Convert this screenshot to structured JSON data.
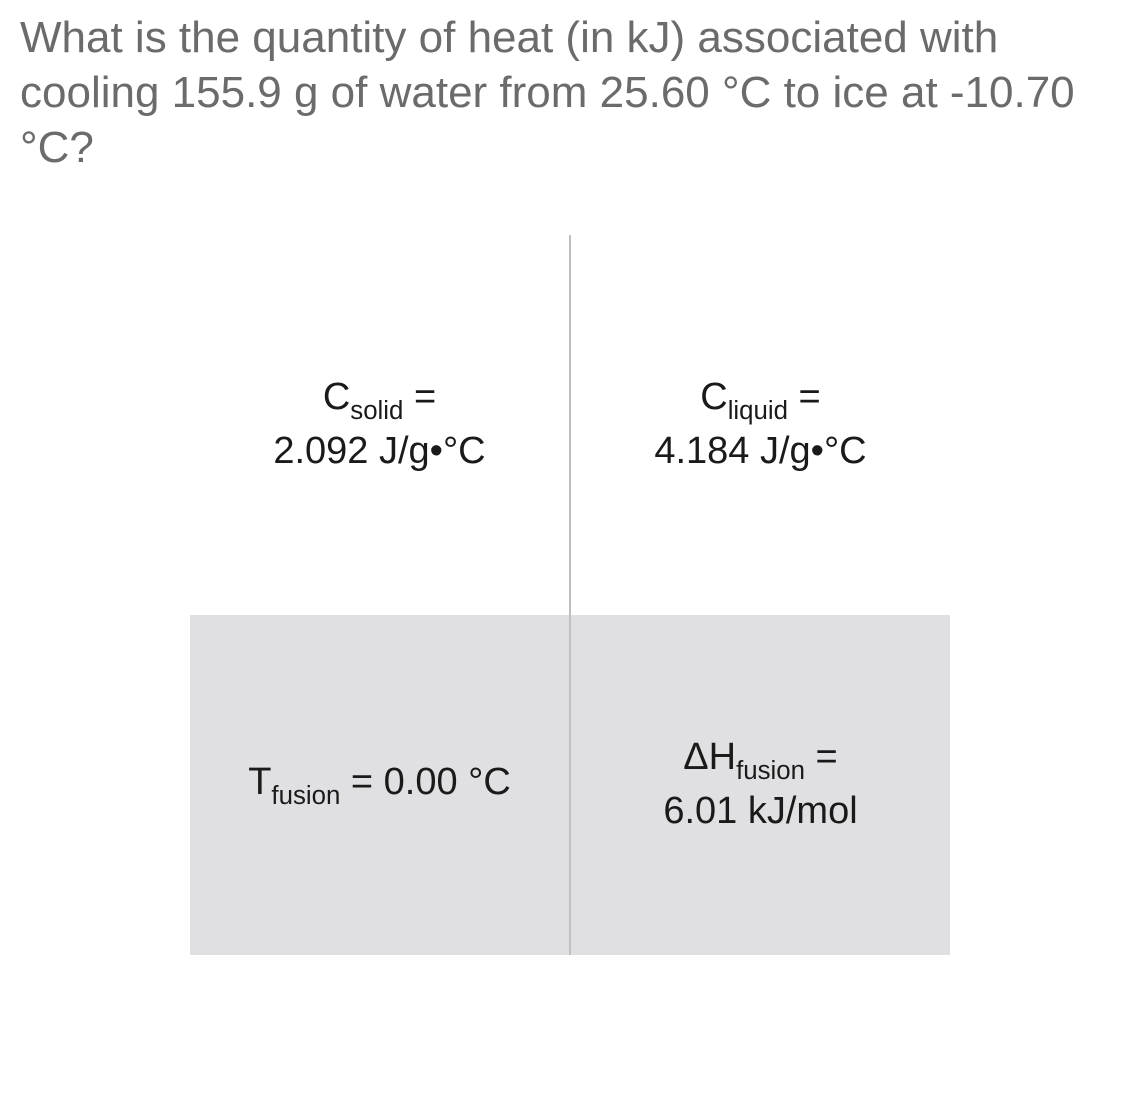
{
  "question": "What is the quantity of heat (in kJ) associated with cooling 155.9 g of water from 25.60 °C to ice at -10.70 °C?",
  "table": {
    "rows": [
      {
        "background": "#ffffff",
        "cells": [
          {
            "symbol_prefix": "C",
            "symbol_sub": "solid",
            "symbol_suffix": " =",
            "value": "2.092 J/g•°C"
          },
          {
            "symbol_prefix": "C",
            "symbol_sub": "liquid",
            "symbol_suffix": " =",
            "value": "4.184 J/g•°C"
          }
        ]
      },
      {
        "background": "#e0e0e3",
        "cells": [
          {
            "symbol_prefix": "T",
            "symbol_sub": "fusion",
            "symbol_suffix": " = 0.00 °C",
            "value": ""
          },
          {
            "symbol_prefix": "ΔH",
            "symbol_sub": "fusion",
            "symbol_suffix": " =",
            "value": "6.01 kJ/mol"
          }
        ]
      }
    ],
    "border_color": "#bfbfbf",
    "text_color": "#1a1a1a",
    "question_color": "#6b6b6b",
    "font_size_question": 44,
    "font_size_cell": 38
  }
}
